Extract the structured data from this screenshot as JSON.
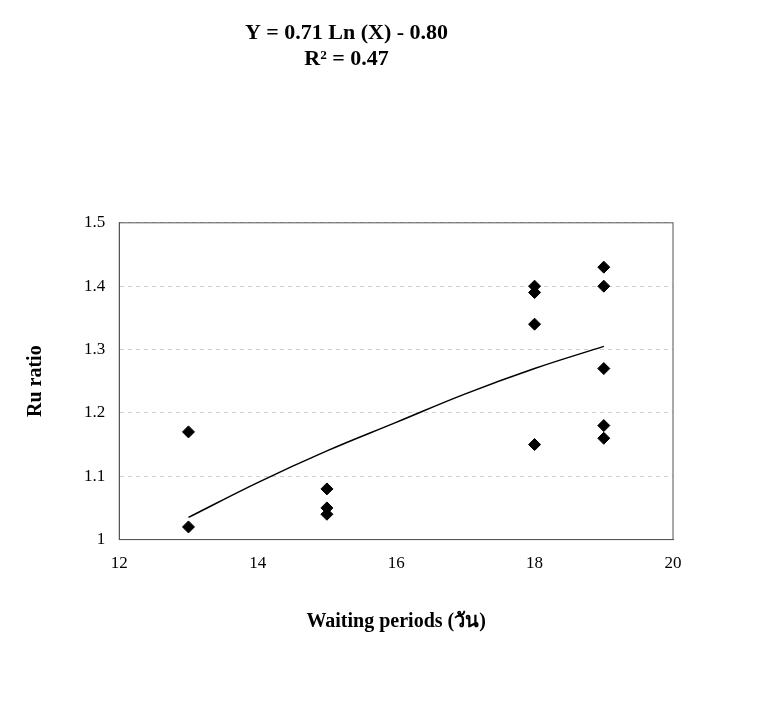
{
  "chart_data": {
    "type": "scatter",
    "title": [
      "Y = 0.71 Ln (X) - 0.80",
      "R² = 0.47"
    ],
    "x_label": "Waiting periods (วัน)",
    "y_label": "Ru ratio",
    "xlim": [
      12,
      20
    ],
    "xticks": [
      12,
      14,
      16,
      18,
      20
    ],
    "ylim": [
      1,
      1.5
    ],
    "yticks": [
      1,
      1.1,
      1.2,
      1.3,
      1.4,
      1.5
    ],
    "grid": true,
    "series": [
      {
        "type": "scatter",
        "marker": "diamond",
        "color": "#000000",
        "x": [
          13,
          13,
          15,
          15,
          15,
          18,
          18,
          18,
          18,
          19,
          19,
          19,
          19,
          19
        ],
        "values": [
          1.17,
          1.02,
          1.08,
          1.05,
          1.04,
          1.4,
          1.39,
          1.34,
          1.15,
          1.43,
          1.4,
          1.27,
          1.18,
          1.16
        ]
      },
      {
        "type": "line",
        "marker": "none",
        "line_style": "solid",
        "color": "#000000",
        "x": [
          13,
          14,
          15,
          16,
          17,
          18,
          19
        ],
        "values": [
          1.035,
          1.09,
          1.14,
          1.185,
          1.23,
          1.27,
          1.305
        ]
      }
    ]
  }
}
